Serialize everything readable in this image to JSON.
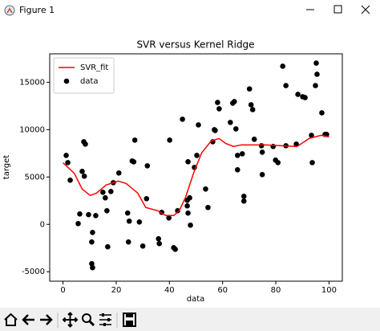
{
  "window": {
    "title": "Figure 1"
  },
  "chart_data": {
    "type": "scatter",
    "title": "SVR versus Kernel Ridge",
    "x_label": "data",
    "y_label": "target",
    "xlim": [
      -5,
      105
    ],
    "ylim": [
      -6000,
      18000
    ],
    "xticks": [
      0,
      20,
      40,
      60,
      80,
      100
    ],
    "yticks": [
      -5000,
      0,
      5000,
      10000,
      15000
    ],
    "legend": "upper left",
    "series": [
      {
        "name": "SVR_fit",
        "type": "line",
        "color": "#ff0000",
        "x": [
          0,
          4.2,
          7.2,
          10.2,
          12.6,
          16.2,
          20.7,
          23.7,
          28.1,
          31.1,
          35.6,
          38.6,
          41.6,
          43.7,
          46.1,
          49.1,
          52.1,
          55.7,
          58.7,
          61.1,
          64.1,
          67.1,
          71.6,
          76,
          82,
          88,
          92.5,
          97,
          100
        ],
        "values": [
          6500,
          5400,
          3730,
          3050,
          3300,
          4150,
          4570,
          4320,
          3300,
          1780,
          1440,
          930,
          930,
          1440,
          2880,
          5420,
          7540,
          8810,
          9060,
          8550,
          8220,
          8390,
          8390,
          8390,
          8300,
          8220,
          9060,
          9400,
          9230
        ]
      },
      {
        "name": "data",
        "type": "scatter",
        "color": "#000000",
        "x": [
          1.2,
          1.8,
          2.7,
          5.7,
          6.3,
          7.2,
          8,
          7.8,
          8.4,
          9.6,
          10.8,
          11.1,
          10.8,
          11.1,
          12.3,
          15,
          15.9,
          16.5,
          16.8,
          18,
          18.9,
          21,
          24.3,
          24.6,
          24.9,
          26,
          27,
          26.6,
          28.7,
          30,
          31.4,
          31.7,
          35.9,
          36.2,
          37.1,
          39.8,
          40.1,
          41.6,
          42.2,
          43.1,
          44.9,
          46.7,
          46.7,
          47,
          47.6,
          47.9,
          47,
          49.4,
          50.3,
          50.9,
          53.6,
          54.5,
          56.3,
          56.9,
          57.2,
          58.1,
          58.7,
          62.9,
          63.8,
          64.4,
          65,
          65.6,
          65.6,
          67.4,
          68,
          68,
          70.1,
          70.7,
          71.3,
          71.9,
          74.6,
          74.9,
          74.9,
          79,
          79.9,
          80.8,
          82.6,
          83.8,
          83.8,
          87.7,
          88.3,
          90.1,
          91,
          93.4,
          93.7,
          94.9,
          95.2,
          95.5,
          97.3,
          98.5,
          99.1
        ],
        "values": [
          7280,
          6520,
          4660,
          80,
          1100,
          5590,
          5080,
          8720,
          8470,
          1020,
          -1860,
          -850,
          -4150,
          -4570,
          930,
          3390,
          2800,
          1440,
          -2370,
          3470,
          4400,
          5420,
          1190,
          -1860,
          340,
          6690,
          8890,
          6600,
          250,
          -2290,
          2710,
          6180,
          -1520,
          -2030,
          1270,
          680,
          8890,
          -2460,
          -2630,
          1440,
          11100,
          1950,
          2540,
          1190,
          2800,
          -85,
          6610,
          6010,
          7280,
          10500,
          3730,
          1780,
          8720,
          9990,
          9910,
          12870,
          12200,
          10760,
          12790,
          12960,
          10080,
          7280,
          5760,
          7450,
          2960,
          2460,
          14300,
          12620,
          12110,
          8980,
          8300,
          5250,
          7620,
          8220,
          6780,
          6520,
          16690,
          14650,
          8300,
          8470,
          13720,
          13470,
          13380,
          9400,
          6520,
          14650,
          17020,
          15840,
          11770,
          9490,
          9490
        ]
      }
    ]
  }
}
